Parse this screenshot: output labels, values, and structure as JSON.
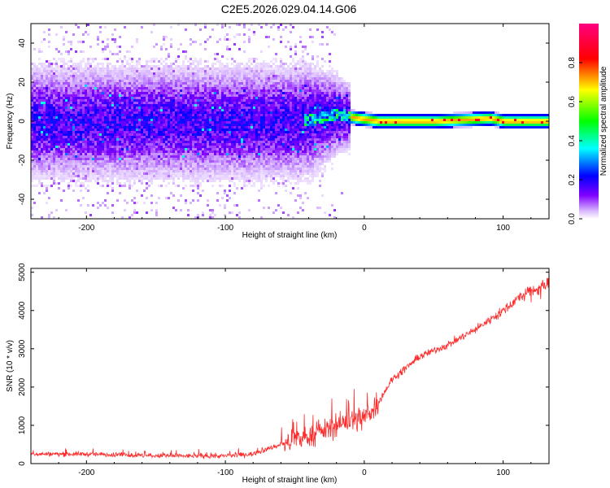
{
  "title": "C2E5.2026.029.04.14.G06",
  "chart_data": [
    {
      "type": "heatmap",
      "xlabel": "Height of straight line (km)",
      "ylabel": "Frequency (Hz)",
      "xlim": [
        -240,
        133
      ],
      "ylim": [
        -50,
        50
      ],
      "xticks": [
        -200,
        -100,
        0,
        100
      ],
      "yticks": [
        -40,
        -20,
        0,
        20,
        40
      ],
      "xtick_labels": [
        "-200",
        "-100",
        "0",
        "100"
      ],
      "ytick_labels": [
        "-40",
        "-20",
        "0",
        "20",
        "40"
      ],
      "colorbar": {
        "label": "Normalized spectral amplitude",
        "range": [
          0,
          1
        ],
        "ticks": [
          0.0,
          0.2,
          0.4,
          0.6,
          0.8
        ],
        "tick_labels": [
          "0.0",
          "0.2",
          "0.4",
          "0.6",
          "0.8"
        ],
        "colors": [
          "#ffffff",
          "#8000ff",
          "#0000ff",
          "#00ffff",
          "#00ff00",
          "#ffff00",
          "#ff0000",
          "#ff0080"
        ]
      },
      "ridge": {
        "description_x_km": [
          -240,
          -60,
          -40,
          -20,
          -5,
          10,
          50,
          90,
          100,
          133
        ],
        "center_freq_hz": [
          0,
          0,
          1,
          4,
          2,
          0.5,
          0.5,
          2,
          0.5,
          0.5
        ]
      }
    },
    {
      "type": "line",
      "xlabel": "Height of straight line (km)",
      "ylabel": "SNR (10 * v/v)",
      "xlim": [
        -240,
        133
      ],
      "ylim": [
        0,
        5100
      ],
      "xticks": [
        -200,
        -100,
        0,
        100
      ],
      "yticks": [
        0,
        1000,
        2000,
        3000,
        4000,
        5000
      ],
      "xtick_labels": [
        "-200",
        "-100",
        "0",
        "100"
      ],
      "ytick_labels": [
        "0",
        "1000",
        "2000",
        "3000",
        "4000",
        "5000"
      ],
      "color": "#ff2a2a",
      "series": [
        {
          "name": "SNR",
          "x": [
            -240,
            -200,
            -150,
            -100,
            -80,
            -60,
            -40,
            -20,
            -10,
            0,
            10,
            20,
            40,
            60,
            80,
            100,
            110,
            120,
            133
          ],
          "y": [
            250,
            250,
            200,
            200,
            250,
            500,
            700,
            1000,
            1100,
            1200,
            1600,
            2200,
            2800,
            3100,
            3500,
            4000,
            4300,
            4500,
            4700
          ]
        }
      ]
    }
  ]
}
